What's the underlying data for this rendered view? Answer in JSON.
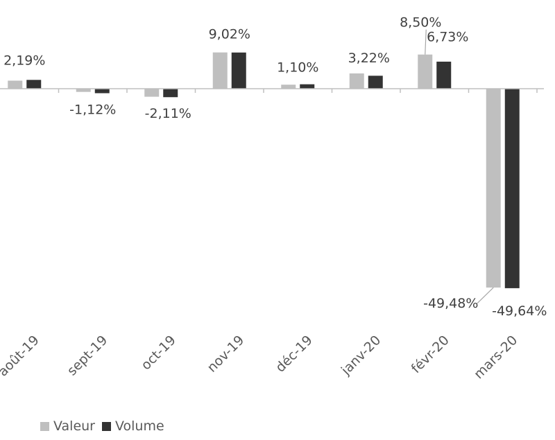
{
  "chart_data": {
    "type": "bar",
    "categories": [
      "août-19",
      "sept-19",
      "oct-19",
      "nov-19",
      "déc-19",
      "janv-20",
      "févr-20",
      "mars-20"
    ],
    "series": [
      {
        "name": "Valeur",
        "color": "#bfbfbf",
        "values": [
          2.0,
          -0.8,
          -2.0,
          9.02,
          1.0,
          3.8,
          8.5,
          -49.48
        ]
      },
      {
        "name": "Volume",
        "color": "#333333",
        "values": [
          2.19,
          -1.12,
          -2.11,
          9.0,
          1.1,
          3.22,
          6.73,
          -49.64
        ]
      }
    ],
    "data_labels": [
      {
        "category": "août-19",
        "text": "2,19%"
      },
      {
        "category": "sept-19",
        "text": "-1,12%"
      },
      {
        "category": "oct-19",
        "text": "-2,11%"
      },
      {
        "category": "nov-19",
        "text": "9,02%"
      },
      {
        "category": "déc-19",
        "text": "1,10%"
      },
      {
        "category": "janv-20",
        "text": "3,22%"
      },
      {
        "category": "févr-20",
        "text": "8,50%"
      },
      {
        "category": "févr-20",
        "text": "6,73%"
      },
      {
        "category": "mars-20",
        "text": "-49,48%"
      },
      {
        "category": "mars-20",
        "text": "-49,64%"
      }
    ],
    "title": "",
    "xlabel": "",
    "ylabel": "",
    "ylim": [
      -55,
      15
    ],
    "grid": false,
    "legend_position": "bottom-left"
  }
}
